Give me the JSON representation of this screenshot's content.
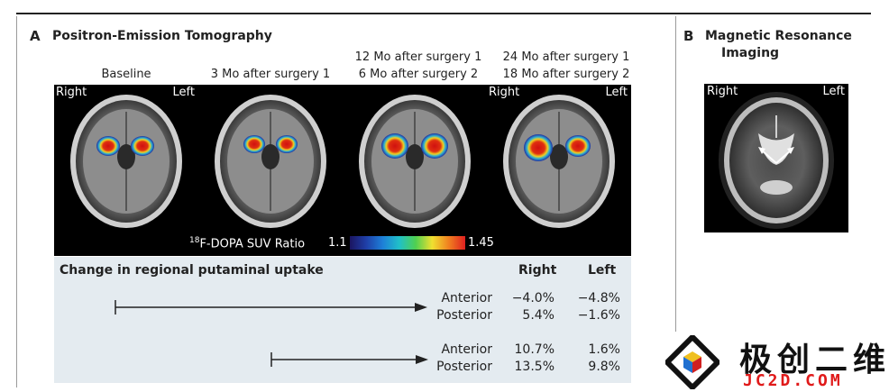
{
  "panel_a": {
    "letter": "A",
    "title": "Positron-Emission Tomography",
    "scans": [
      {
        "header_line1": "",
        "header_line2": "Baseline",
        "show_right": "Right",
        "show_left": "Left"
      },
      {
        "header_line1": "",
        "header_line2": "3 Mo after surgery 1",
        "show_right": "",
        "show_left": ""
      },
      {
        "header_line1": "12 Mo after surgery 1",
        "header_line2": "6 Mo after surgery 2",
        "show_right": "",
        "show_left": ""
      },
      {
        "header_line1": "24 Mo after surgery 1",
        "header_line2": "18 Mo after surgery 2",
        "show_right": "Right",
        "show_left": "Left"
      }
    ],
    "colorbar": {
      "label_sup": "18",
      "label": "F-DOPA SUV Ratio",
      "min": "1.1",
      "max": "1.45",
      "colors": [
        "#1b1560",
        "#1f3fa8",
        "#1e80d8",
        "#20c0c8",
        "#50d050",
        "#f0e030",
        "#f08020",
        "#e02020"
      ]
    },
    "table": {
      "title": "Change in regional putaminal uptake",
      "col_right": "Right",
      "col_left": "Left",
      "groups": [
        {
          "rows": [
            {
              "region": "Anterior",
              "right": "−4.0%",
              "left": "−4.8%"
            },
            {
              "region": "Posterior",
              "right": "5.4%",
              "left": "−1.6%"
            }
          ]
        },
        {
          "rows": [
            {
              "region": "Anterior",
              "right": "10.7%",
              "left": "1.6%"
            },
            {
              "region": "Posterior",
              "right": "13.5%",
              "left": "9.8%"
            }
          ]
        }
      ]
    }
  },
  "panel_b": {
    "letter": "B",
    "title_line1": "Magnetic Resonance",
    "title_line2": "Imaging",
    "label_right": "Right",
    "label_left": "Left"
  },
  "watermark": {
    "cn": "极创二维",
    "en": "JC2D.COM"
  }
}
